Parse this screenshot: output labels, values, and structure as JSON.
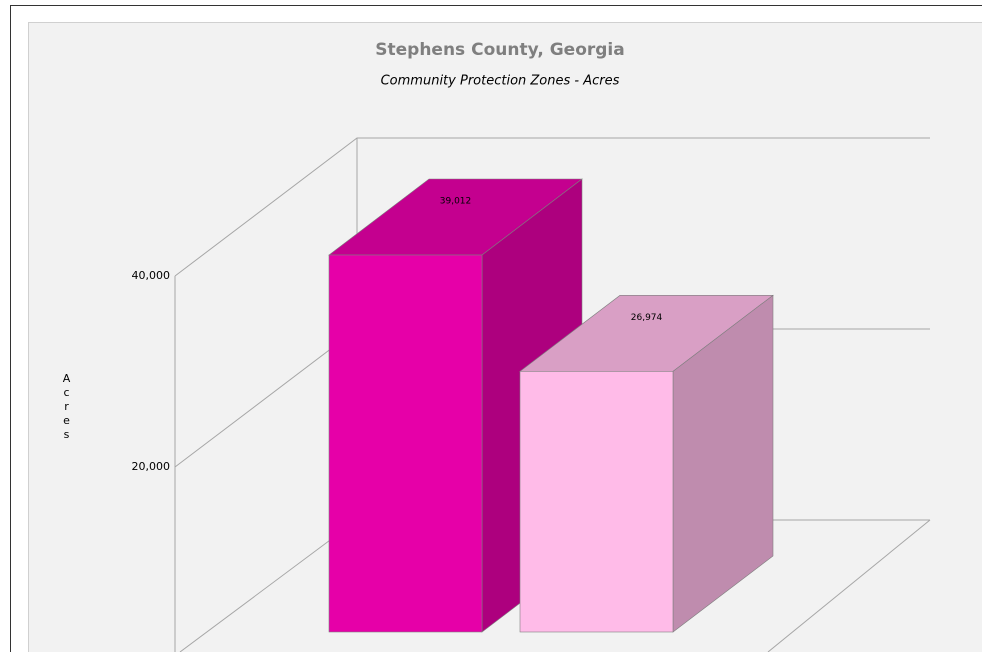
{
  "chart_data": {
    "type": "bar3d",
    "title": "Stephens County, Georgia",
    "subtitle": "Community Protection Zones - Acres",
    "y_label": "Acres",
    "categories": [
      null,
      null
    ],
    "values": [
      39012,
      26974
    ],
    "value_labels": [
      "39,012",
      "26,974"
    ],
    "colors": [
      "#e600a8",
      "#ffbbe8"
    ],
    "ylim": [
      0,
      40000
    ],
    "yticks": [
      {
        "value": 20000,
        "label": "20,000"
      },
      {
        "value": 40000,
        "label": "40,000"
      }
    ],
    "grid": true
  }
}
